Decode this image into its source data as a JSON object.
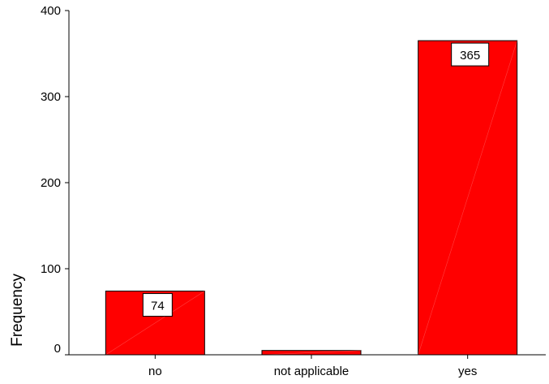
{
  "chart_data": {
    "type": "bar",
    "categories": [
      "no",
      "not applicable",
      "yes"
    ],
    "values": [
      74,
      5,
      365
    ],
    "data_labels": [
      "74",
      "",
      "365"
    ],
    "ylabel": "Frequency",
    "xlabel": "",
    "ylim": [
      0,
      400
    ],
    "yticks": [
      0,
      100,
      200,
      300,
      400
    ],
    "ytick_labels": [
      "0",
      "100",
      "200",
      "300",
      "400"
    ],
    "grid": false,
    "bar_color": "#ff0000",
    "bar_edge_color": "#000000"
  }
}
